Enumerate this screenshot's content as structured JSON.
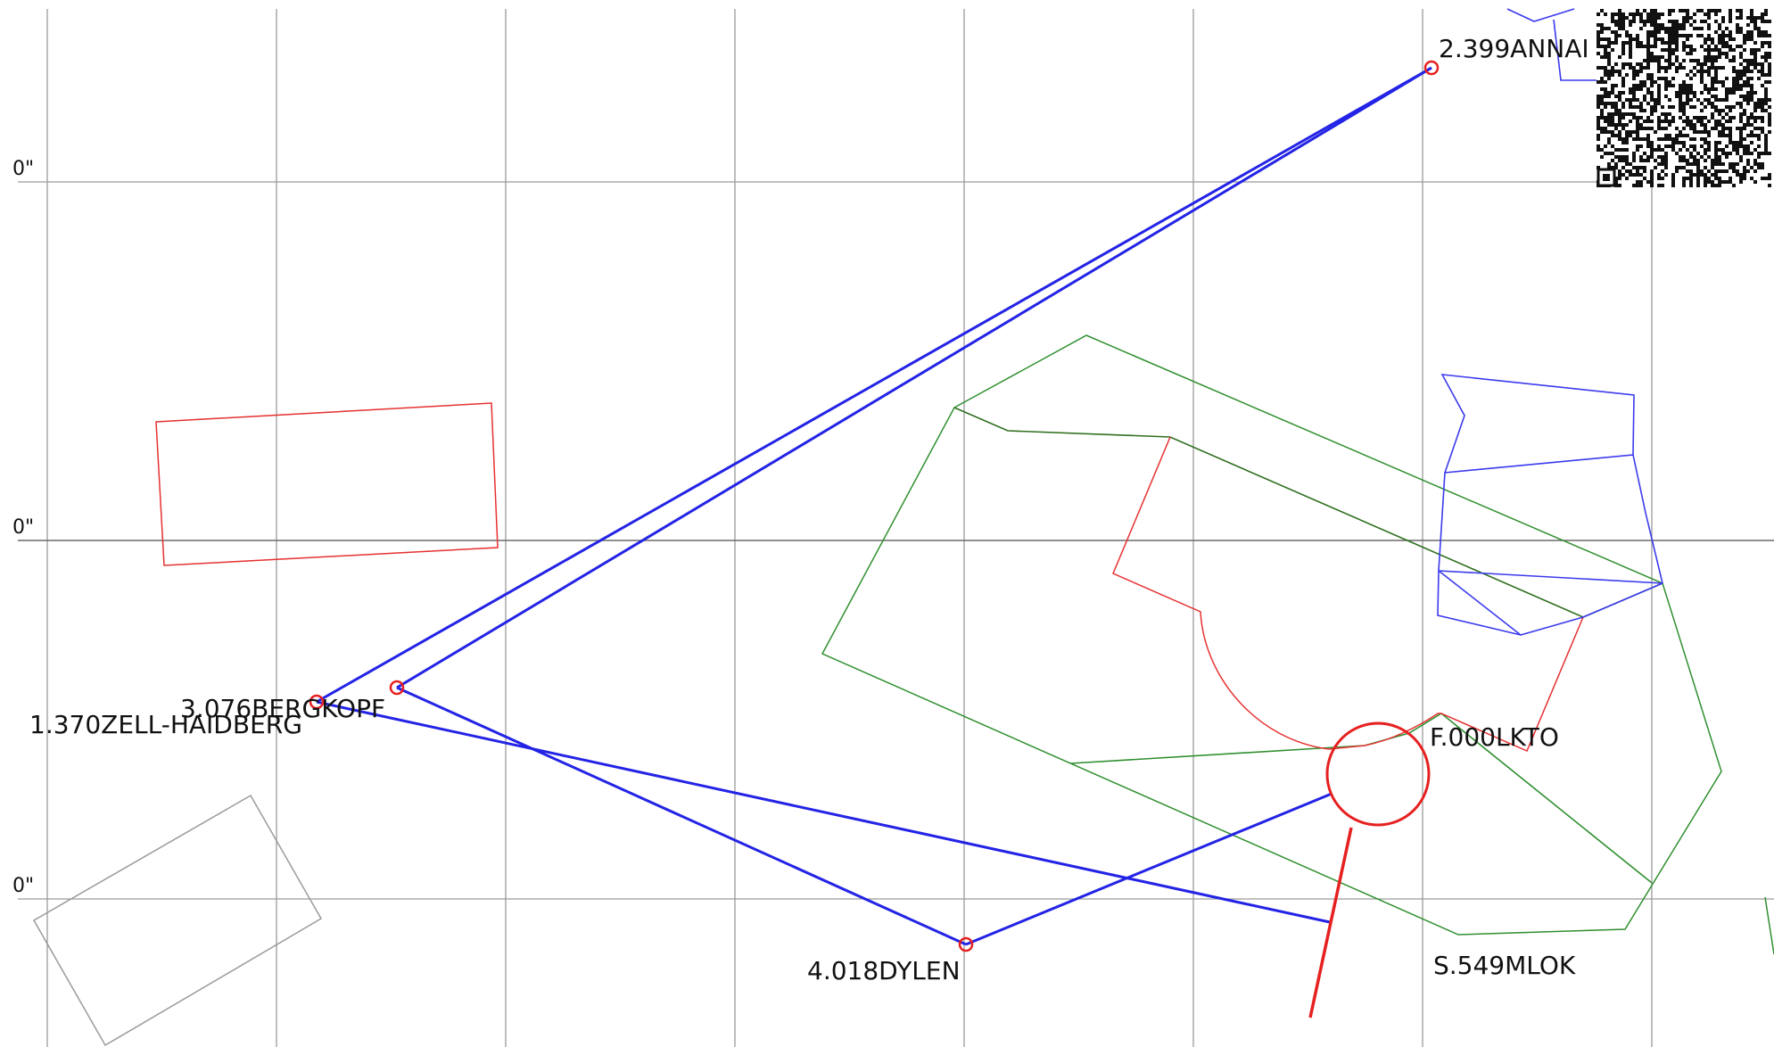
{
  "map": {
    "grid_labels": [
      "0\"",
      "0\"",
      "0\""
    ],
    "stations": [
      {
        "id": "annai",
        "label": "2.399ANNAI"
      },
      {
        "id": "bergkopf",
        "label": "3.076BERGKOPF"
      },
      {
        "id": "zell",
        "label": "1.370ZELL-HAIDBERG"
      },
      {
        "id": "dylen",
        "label": "4.018DYLEN"
      },
      {
        "id": "lkto",
        "label": "F.000LKTO"
      },
      {
        "id": "mlok",
        "label": "S.549MLOK"
      }
    ],
    "colors": {
      "ray": "#2323e6",
      "station_marker": "#e62020",
      "green_boundary": "#2f8f2f",
      "red_boundary": "#e63030",
      "blue_building": "#3a3aee",
      "grey_outline": "#9a9a9a"
    },
    "qr_icon": "qr-code-icon"
  }
}
